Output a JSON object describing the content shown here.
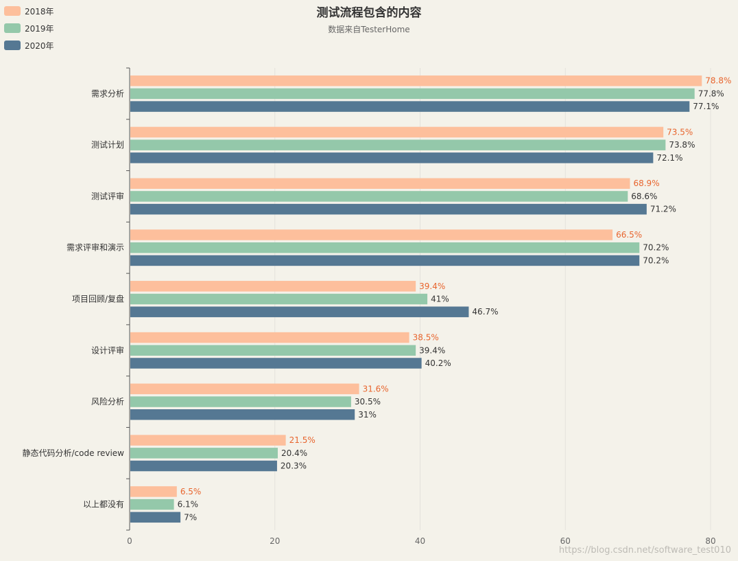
{
  "title": "测试流程包含的内容",
  "subtitle": "数据来自TesterHome",
  "watermark": "https://blog.csdn.net/software_test010",
  "colors": {
    "2018年": "#fdbf9c",
    "2019年": "#94c8aa",
    "2020年": "#557893",
    "label_2018": "#e8652e",
    "label_default": "#333333",
    "axis": "#555555",
    "grid": "#e3e1dc"
  },
  "chart_data": {
    "type": "bar",
    "orientation": "horizontal",
    "title": "测试流程包含的内容",
    "subtitle": "数据来自TesterHome",
    "xlim": [
      0,
      80
    ],
    "x_ticks": [
      0,
      20,
      40,
      60,
      80
    ],
    "categories": [
      "需求分析",
      "测试计划",
      "测试评审",
      "需求评审和演示",
      "项目回顾/复盘",
      "设计评审",
      "风险分析",
      "静态代码分析/code review",
      "以上都没有"
    ],
    "series": [
      {
        "name": "2018年",
        "values": [
          78.8,
          73.5,
          68.9,
          66.5,
          39.4,
          38.5,
          31.6,
          21.5,
          6.5
        ],
        "labels": [
          "78.8%",
          "73.5%",
          "68.9%",
          "66.5%",
          "39.4%",
          "38.5%",
          "31.6%",
          "21.5%",
          "6.5%"
        ]
      },
      {
        "name": "2019年",
        "values": [
          77.8,
          73.8,
          68.6,
          70.2,
          41,
          39.4,
          30.5,
          20.4,
          6.1
        ],
        "labels": [
          "77.8%",
          "73.8%",
          "68.6%",
          "70.2%",
          "41%",
          "39.4%",
          "30.5%",
          "20.4%",
          "6.1%"
        ]
      },
      {
        "name": "2020年",
        "values": [
          77.1,
          72.1,
          71.2,
          70.2,
          46.7,
          40.2,
          31,
          20.3,
          7
        ],
        "labels": [
          "77.1%",
          "72.1%",
          "71.2%",
          "70.2%",
          "46.7%",
          "40.2%",
          "31%",
          "20.3%",
          "7%"
        ]
      }
    ],
    "grid": true,
    "legend_position": "top-left"
  }
}
